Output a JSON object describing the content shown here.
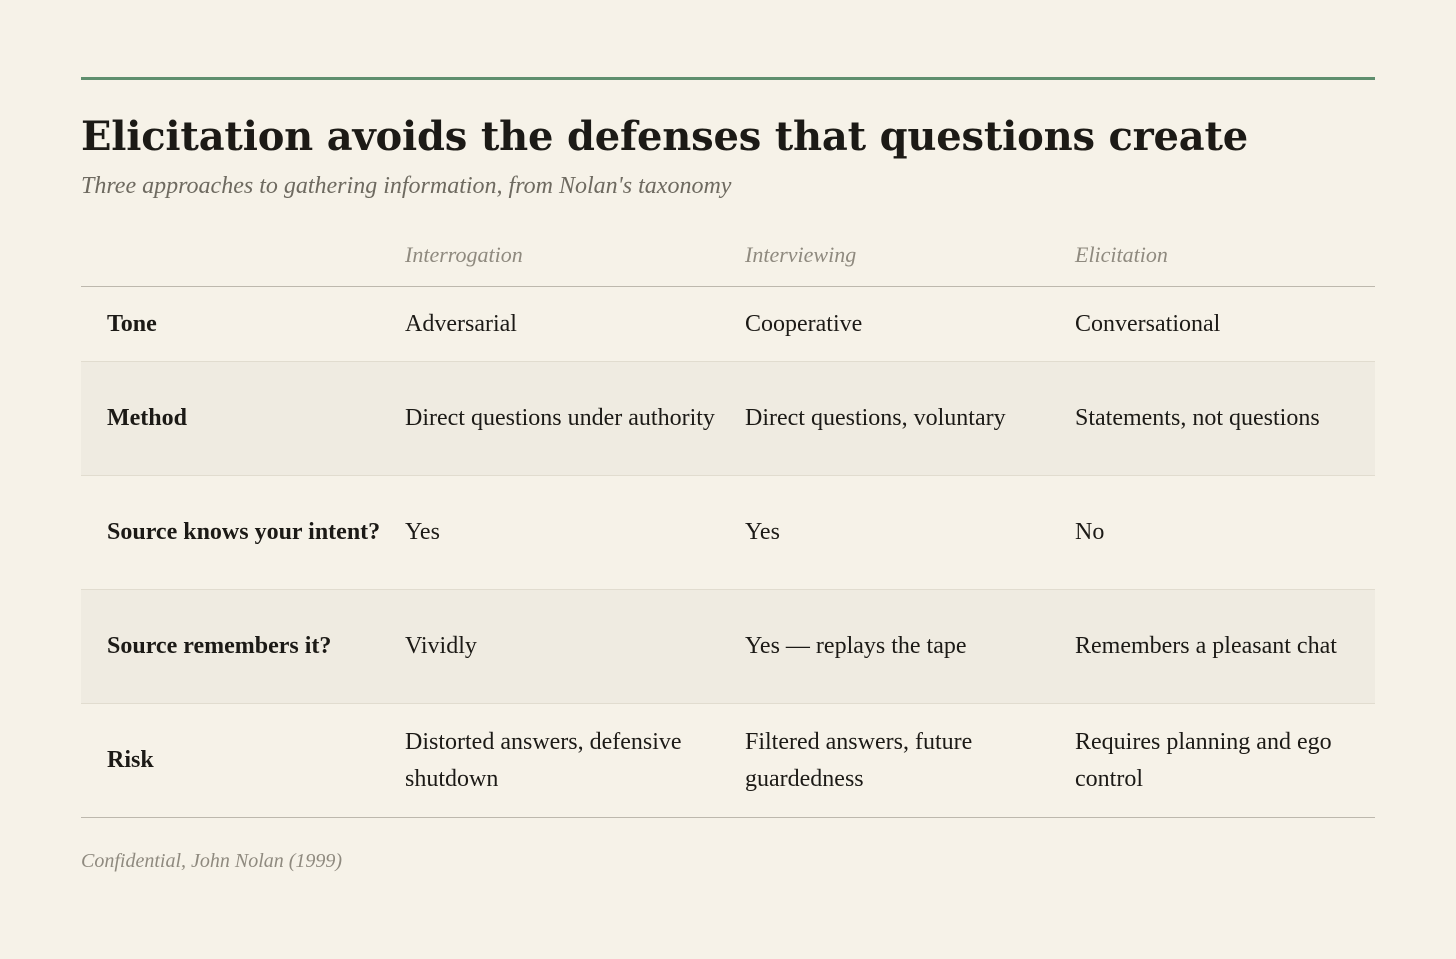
{
  "title": "Elicitation avoids the defenses that questions create",
  "subtitle": "Three approaches to gathering information, from Nolan's taxonomy",
  "table": {
    "columns": [
      "",
      "Interrogation",
      "Interviewing",
      "Elicitation"
    ],
    "rows": [
      {
        "label": "Tone",
        "cells": [
          "Adversarial",
          "Cooperative",
          "Conversational"
        ]
      },
      {
        "label": "Method",
        "cells": [
          "Direct questions under authority",
          "Direct questions, voluntary",
          "Statements, not questions"
        ]
      },
      {
        "label": "Source knows your intent?",
        "cells": [
          "Yes",
          "Yes",
          "No"
        ]
      },
      {
        "label": "Source remembers it?",
        "cells": [
          "Vividly",
          "Yes — replays the tape",
          "Remembers a pleasant chat"
        ]
      },
      {
        "label": "Risk",
        "cells": [
          "Distorted answers, defensive shutdown",
          "Filtered answers, future guardedness",
          "Requires planning and ego control"
        ]
      }
    ]
  },
  "source": "Confidential, John Nolan (1999)",
  "colors": {
    "accent": "#5f8f6e",
    "background": "#f6f2e8",
    "row_shade": "#efebe1"
  }
}
